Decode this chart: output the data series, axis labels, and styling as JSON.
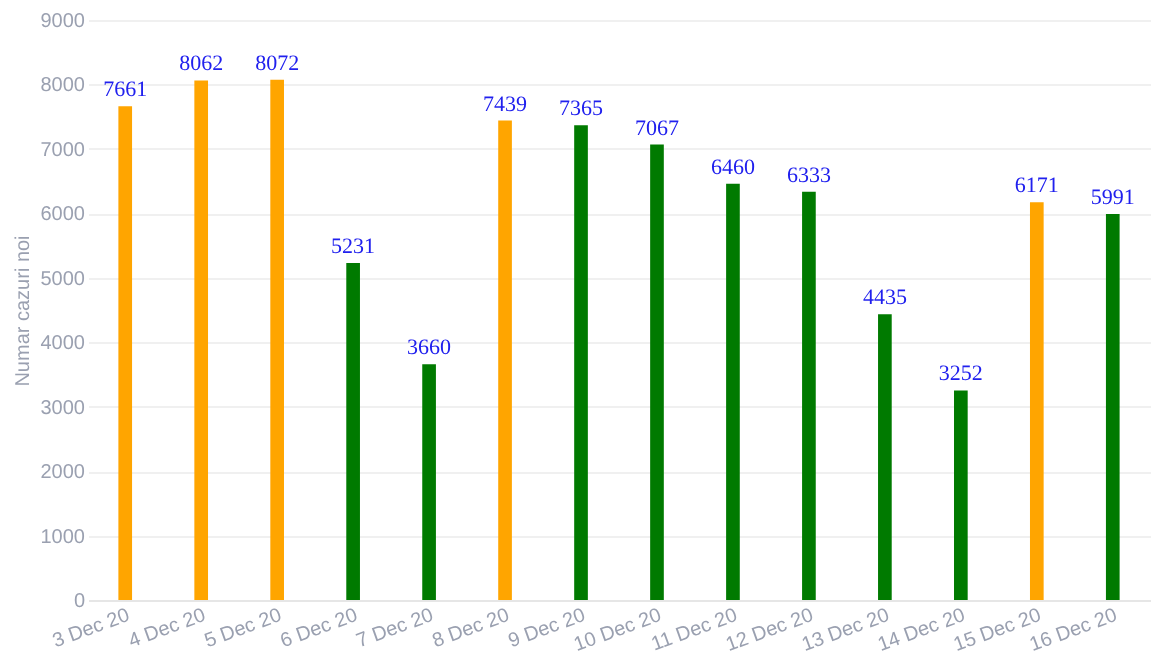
{
  "chart_data": {
    "type": "bar",
    "ylabel": "Numar cazuri noi",
    "categories": [
      "3 Dec 20",
      "4 Dec 20",
      "5 Dec 20",
      "6 Dec 20",
      "7 Dec 20",
      "8 Dec 20",
      "9 Dec 20",
      "10 Dec 20",
      "11 Dec 20",
      "12 Dec 20",
      "13 Dec 20",
      "14 Dec 20",
      "15 Dec 20",
      "16 Dec 20"
    ],
    "values": [
      7661,
      8062,
      8072,
      5231,
      3660,
      7439,
      7365,
      7067,
      6460,
      6333,
      4435,
      3252,
      6171,
      5991
    ],
    "colors": [
      "#ffa500",
      "#ffa500",
      "#ffa500",
      "#007a00",
      "#007a00",
      "#ffa500",
      "#007a00",
      "#007a00",
      "#007a00",
      "#007a00",
      "#007a00",
      "#007a00",
      "#ffa500",
      "#007a00"
    ],
    "ylim": [
      0,
      9000
    ],
    "yticks": [
      0,
      1000,
      2000,
      3000,
      4000,
      5000,
      6000,
      7000,
      8000,
      9000
    ],
    "grid": "y",
    "data_labels": true
  }
}
